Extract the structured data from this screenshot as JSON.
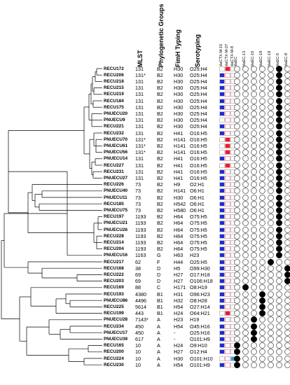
{
  "headers": {
    "mlst": "MLST",
    "phylogenetic_groups": "Phylogenetic Groups",
    "fimh_typing": "FimH Typing",
    "serotyping": "Serotyping"
  },
  "gene_columns": {
    "ctx": [
      "blaCTX-M-15",
      "blaCTX-M-27",
      "blaCTX-M-8"
    ],
    "eib": [
      "blaEC",
      "blaEC-13",
      "blaEC-15",
      "blaEC-18",
      "blaEC-19",
      "blaEC-5",
      "blaEC-8"
    ]
  },
  "colors": {
    "blue": "#1f2bd6",
    "red": "#ec1c24",
    "light_blue": "#1aa3e8",
    "pink_border": "#e8a7b8",
    "dot_fill": "#000000"
  },
  "rows": [
    {
      "strain": "RECU172",
      "mlst": "131",
      "pg": "B2",
      "fimh": "H30",
      "sero": "O25:H4",
      "ctx": "R",
      "eib": 5
    },
    {
      "strain": "RECU206",
      "mlst": "131*",
      "pg": "B2",
      "fimh": "H30",
      "sero": "O25:H4",
      "ctx": "B",
      "eib": 5
    },
    {
      "strain": "RECU218",
      "mlst": "131",
      "pg": "B2",
      "fimh": "H30",
      "sero": "O25:H4",
      "ctx": "B",
      "eib": 5
    },
    {
      "strain": "RECU215",
      "mlst": "131",
      "pg": "B2",
      "fimh": "H30",
      "sero": "O25:H4",
      "ctx": "B",
      "eib": 5
    },
    {
      "strain": "RECU219",
      "mlst": "131",
      "pg": "B2",
      "fimh": "H30",
      "sero": "O25:H4",
      "ctx": "B",
      "eib": 5
    },
    {
      "strain": "RECU184",
      "mlst": "131",
      "pg": "B2",
      "fimh": "H30",
      "sero": "O25:H4",
      "ctx": "B",
      "eib": 5
    },
    {
      "strain": "RECU175",
      "mlst": "131",
      "pg": "B2",
      "fimh": "H30",
      "sero": "O25:H4",
      "ctx": "B",
      "eib": 5
    },
    {
      "strain": "PNUECU20",
      "mlst": "131",
      "pg": "B2",
      "fimh": "H30",
      "sero": "O25:H4",
      "ctx": "B",
      "eib": 5
    },
    {
      "strain": "PNUECU9",
      "mlst": "131",
      "pg": "B2",
      "fimh": "H30",
      "sero": "O25:H4",
      "ctx": "",
      "eib": 5
    },
    {
      "strain": "RECU221",
      "mlst": "131",
      "pg": "B2",
      "fimh": "H30",
      "sero": "O25:H4",
      "ctx": "B",
      "eib": 5
    },
    {
      "strain": "RECU232",
      "mlst": "131",
      "pg": "B2",
      "fimh": "H41",
      "sero": "O16:H5",
      "ctx": "B",
      "eib": 5
    },
    {
      "strain": "PNUECU70",
      "mlst": "131*",
      "pg": "B2",
      "fimh": "H141",
      "sero": "O16:H5",
      "ctx": "R",
      "eib": 5
    },
    {
      "strain": "PNUECU61",
      "mlst": "131*",
      "pg": "B2",
      "fimh": "H141",
      "sero": "O16:H5",
      "ctx": "R",
      "eib": 5
    },
    {
      "strain": "PNUECU56",
      "mlst": "131*",
      "pg": "B2",
      "fimh": "H141",
      "sero": "O16:H5",
      "ctx": "R",
      "eib": 5
    },
    {
      "strain": "PNUECU14",
      "mlst": "131",
      "pg": "B2",
      "fimh": "H41",
      "sero": "O16:H5",
      "ctx": "B",
      "eib": 5
    },
    {
      "strain": "RECU227",
      "mlst": "131",
      "pg": "B2",
      "fimh": "H41",
      "sero": "O16:H5",
      "ctx": "R",
      "eib": 5
    },
    {
      "strain": "RECU231",
      "mlst": "131",
      "pg": "B2",
      "fimh": "H41",
      "sero": "O16:H5",
      "ctx": "B",
      "eib": 5
    },
    {
      "strain": "PNUECU27",
      "mlst": "131",
      "pg": "B2",
      "fimh": "H41",
      "sero": "O16:H5",
      "ctx": "B",
      "eib": 5
    },
    {
      "strain": "RECU226",
      "mlst": "73",
      "pg": "B2",
      "fimh": "H9",
      "sero": "O2:H1",
      "ctx": "B",
      "eib": 5
    },
    {
      "strain": "PNUECU40",
      "mlst": "73",
      "pg": "B2",
      "fimh": "H141",
      "sero": "O6:H1",
      "ctx": "B",
      "eib": 5
    },
    {
      "strain": "PNUECU11",
      "mlst": "73",
      "pg": "B2",
      "fimh": "H30",
      "sero": "O6:H1",
      "ctx": "B",
      "eib": 5
    },
    {
      "strain": "RECU185",
      "mlst": "73",
      "pg": "B2",
      "fimh": "H542",
      "sero": "O6:H1",
      "ctx": "B",
      "eib": 5
    },
    {
      "strain": "PNUECU75",
      "mlst": "73",
      "pg": "B2",
      "fimh": "H580",
      "sero": "O6:H1",
      "ctx": "B",
      "eib": 5
    },
    {
      "strain": "RECU197",
      "mlst": "1193",
      "pg": "B2",
      "fimh": "H64",
      "sero": "O75:H5",
      "ctx": "B",
      "eib": 5
    },
    {
      "strain": "PNUECU21",
      "mlst": "1193",
      "pg": "B2",
      "fimh": "H64",
      "sero": "O75:H5",
      "ctx": "B",
      "eib": 5
    },
    {
      "strain": "PNUECU26",
      "mlst": "1193",
      "pg": "B2",
      "fimh": "H64",
      "sero": "O75:H5",
      "ctx": "B",
      "eib": 5
    },
    {
      "strain": "RECU228",
      "mlst": "1193",
      "pg": "B2",
      "fimh": "H64",
      "sero": "O75:H5",
      "ctx": "B",
      "eib": 5
    },
    {
      "strain": "RECU214",
      "mlst": "1193",
      "pg": "B2",
      "fimh": "H64",
      "sero": "O75:H5",
      "ctx": "B",
      "eib": 5
    },
    {
      "strain": "RECU204",
      "mlst": "1193",
      "pg": "B2",
      "fimh": "H64",
      "sero": "O75:H5",
      "ctx": "B",
      "eib": 5
    },
    {
      "strain": "PNUECU16",
      "mlst": "1163",
      "pg": "G",
      "fimh": "H63",
      "sero": "H23",
      "ctx": "B",
      "eib": 5
    },
    {
      "strain": "RECU217",
      "mlst": "62",
      "pg": "F",
      "fimh": "H44",
      "sero": "O25:H5",
      "ctx": "B",
      "eib": 4
    },
    {
      "strain": "RECU168",
      "mlst": "38",
      "pg": "D",
      "fimh": "H5",
      "sero": "O99:H30",
      "ctx": "B",
      "eib": 6
    },
    {
      "strain": "RECU222",
      "mlst": "69",
      "pg": "D",
      "fimh": "H27",
      "sero": "O17:H18",
      "ctx": "B",
      "eib": 6
    },
    {
      "strain": "RECU203",
      "mlst": "69",
      "pg": "D",
      "fimh": "H27",
      "sero": "O106:H18",
      "ctx": "B",
      "eib": 6
    },
    {
      "strain": "RECU169",
      "mlst": "88",
      "pg": "C",
      "fimh": "H171",
      "sero": "O8:H19",
      "ctx": "B",
      "eib": 1
    },
    {
      "strain": "RECU193",
      "mlst": "4380",
      "pg": "B1",
      "fimh": "H31",
      "sero": "O96:H23",
      "ctx": "B",
      "eib": 3
    },
    {
      "strain": "PNUECU86",
      "mlst": "4496",
      "pg": "B1",
      "fimh": "H32",
      "sero": "O8:H28",
      "ctx": "B",
      "eib": 3
    },
    {
      "strain": "RECU225",
      "mlst": "5614",
      "pg": "B1",
      "fimh": "H54",
      "sero": "O27:H14",
      "ctx": "B",
      "eib": 3
    },
    {
      "strain": "RECU199",
      "mlst": "443",
      "pg": "B1",
      "fimh": "H24",
      "sero": "O64:H21",
      "ctx": "R",
      "eib": 3
    },
    {
      "strain": "PNUECU28",
      "mlst": "7143*",
      "pg": "A",
      "fimh": "H23",
      "sero": "H19",
      "ctx": "B",
      "eib": 2
    },
    {
      "strain": "RECU234",
      "mlst": "450",
      "pg": "A",
      "fimh": "H54",
      "sero": "O45:H16",
      "ctx": "B",
      "eib": 2
    },
    {
      "strain": "PNUECU17",
      "mlst": "450",
      "pg": "A",
      "fimh": "-",
      "sero": "O25:H16",
      "ctx": "B",
      "eib": 2
    },
    {
      "strain": "PNUECU39",
      "mlst": "617",
      "pg": "A",
      "fimh": "-",
      "sero": "O101:H9",
      "ctx": "B",
      "eib": 2
    },
    {
      "strain": "RECU165",
      "mlst": "10",
      "pg": "A",
      "fimh": "H24",
      "sero": "O9:H10",
      "ctx": "B",
      "eib": 0
    },
    {
      "strain": "RECU200",
      "mlst": "10",
      "pg": "A",
      "fimh": "H27",
      "sero": "O12:H4",
      "ctx": "B",
      "eib": 0
    },
    {
      "strain": "RECU224",
      "mlst": "10",
      "pg": "A",
      "fimh": "H30",
      "sero": "O101:H10",
      "ctx": "L",
      "eib": 0
    },
    {
      "strain": "RECU230",
      "mlst": "10",
      "pg": "A",
      "fimh": "H54",
      "sero": "O101:H9",
      "ctx": "B",
      "eib": 0
    }
  ]
}
